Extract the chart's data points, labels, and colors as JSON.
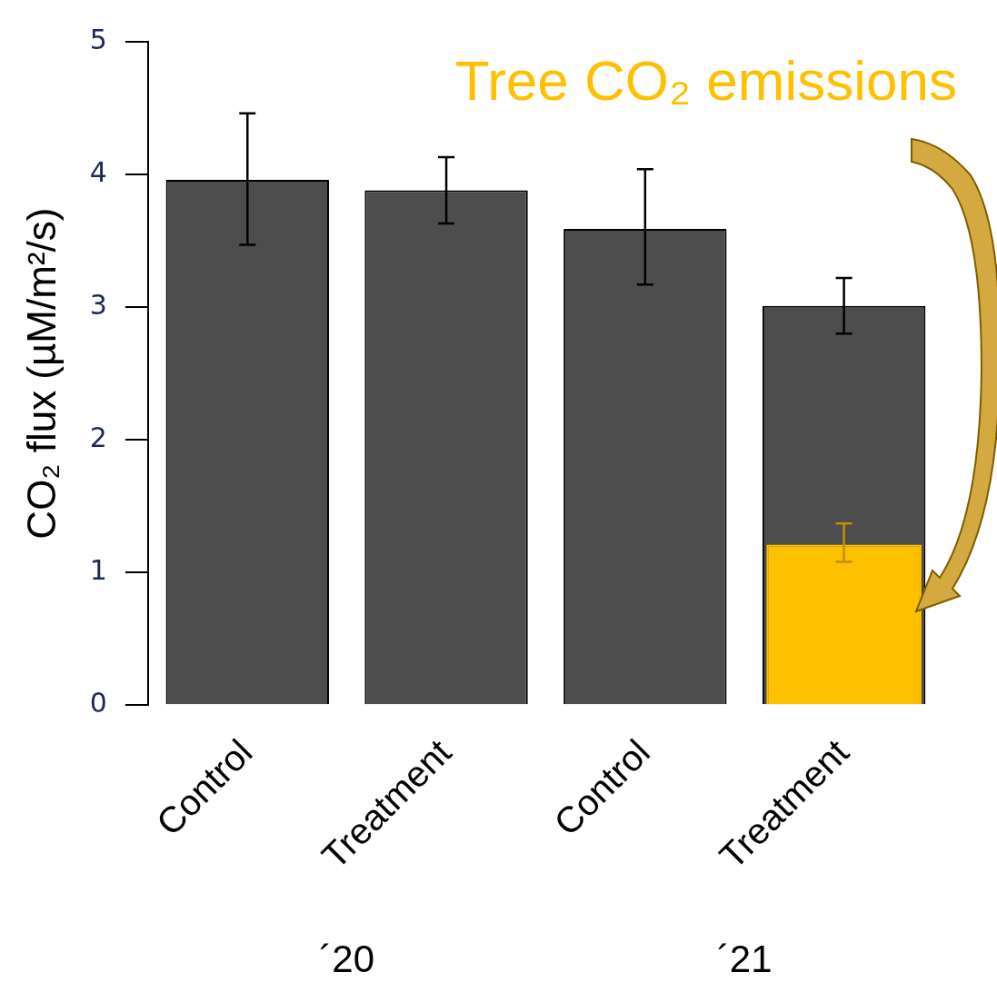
{
  "chart_data": {
    "type": "bar",
    "ylabel": "CO₂ flux (µM/m²/s)",
    "categories": [
      "Control",
      "Treatment",
      "Control",
      "Treatment"
    ],
    "series": [
      {
        "color": "#4d4d4d",
        "values": [
          3.96,
          3.88,
          3.59,
          3.01
        ],
        "errors": [
          [
            3.47,
            4.46
          ],
          [
            3.63,
            4.13
          ],
          [
            3.17,
            4.04
          ],
          [
            2.8,
            3.22
          ]
        ]
      },
      {
        "name": "Tree CO₂ emissions",
        "color": "#ffc000",
        "values": [
          null,
          null,
          null,
          1.21
        ],
        "errors": [
          null,
          null,
          null,
          [
            1.08,
            1.37
          ]
        ]
      }
    ],
    "ylim": [
      0,
      5
    ],
    "yticks": [
      0,
      1,
      2,
      3,
      4,
      5
    ],
    "grid": false,
    "legend": false,
    "annotations": [
      "´20",
      "´21"
    ]
  }
}
